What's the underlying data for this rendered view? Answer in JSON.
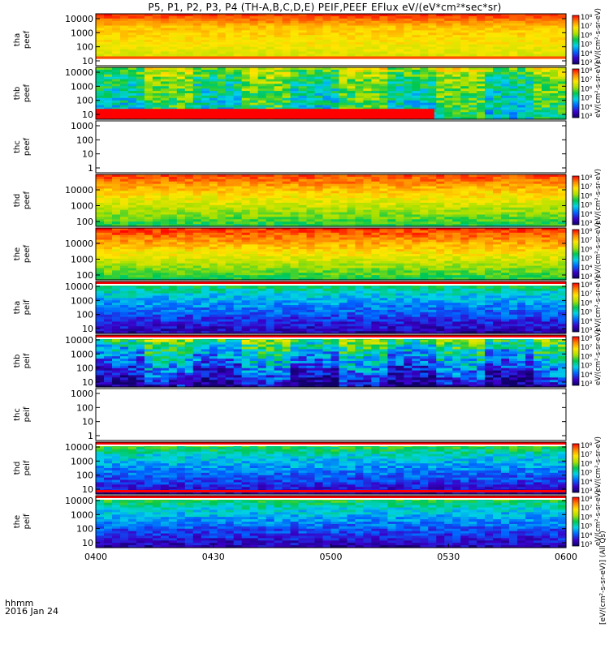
{
  "chart_data": {
    "type": "heatmap",
    "title": "P5, P1, P2, P3, P4 (TH-A,B,C,D,E) PEIF,PEEF EFlux eV/(eV*cm²*sec*sr)",
    "x_axis": {
      "tick_labels": [
        "0400",
        "0430",
        "0500",
        "0530",
        "0600"
      ],
      "footer_label": "hhmm",
      "date_label": "2016 Jan 24"
    },
    "colorbar": {
      "ticks": [
        "10³",
        "10⁴",
        "10⁵",
        "10⁶",
        "10⁷",
        "10⁸"
      ],
      "unit_label": "eV/(cm²-s-sr-eV)",
      "full_unit_label": "[eV/(cm²-s-sr-eV)] (All Qs)"
    },
    "panels": [
      {
        "probe": "tha",
        "product": "peef",
        "y_ticks": [
          "10",
          "100",
          "1000",
          "10000"
        ],
        "data": true,
        "colorbar": true
      },
      {
        "probe": "thb",
        "product": "peef",
        "y_ticks": [
          "10",
          "100",
          "1000",
          "10000"
        ],
        "data": true,
        "colorbar": true
      },
      {
        "probe": "thc",
        "product": "peef",
        "y_ticks": [
          "1",
          "10",
          "100",
          "1000"
        ],
        "data": false,
        "colorbar": false
      },
      {
        "probe": "thd",
        "product": "peef",
        "y_ticks": [
          "100",
          "1000",
          "10000"
        ],
        "data": true,
        "colorbar": true
      },
      {
        "probe": "the",
        "product": "peef",
        "y_ticks": [
          "100",
          "1000",
          "10000"
        ],
        "data": true,
        "colorbar": true
      },
      {
        "probe": "tha",
        "product": "peif",
        "y_ticks": [
          "10",
          "100",
          "1000",
          "10000"
        ],
        "data": true,
        "colorbar": true
      },
      {
        "probe": "thb",
        "product": "peif",
        "y_ticks": [
          "10",
          "100",
          "1000",
          "10000"
        ],
        "data": true,
        "colorbar": true
      },
      {
        "probe": "thc",
        "product": "peif",
        "y_ticks": [
          "1",
          "10",
          "100",
          "1000"
        ],
        "data": false,
        "colorbar": false
      },
      {
        "probe": "thd",
        "product": "peif",
        "y_ticks": [
          "10",
          "100",
          "1000",
          "10000"
        ],
        "data": true,
        "colorbar": true
      },
      {
        "probe": "the",
        "product": "peif",
        "y_ticks": [
          "10",
          "100",
          "1000",
          "10000"
        ],
        "data": true,
        "colorbar": true
      }
    ]
  }
}
